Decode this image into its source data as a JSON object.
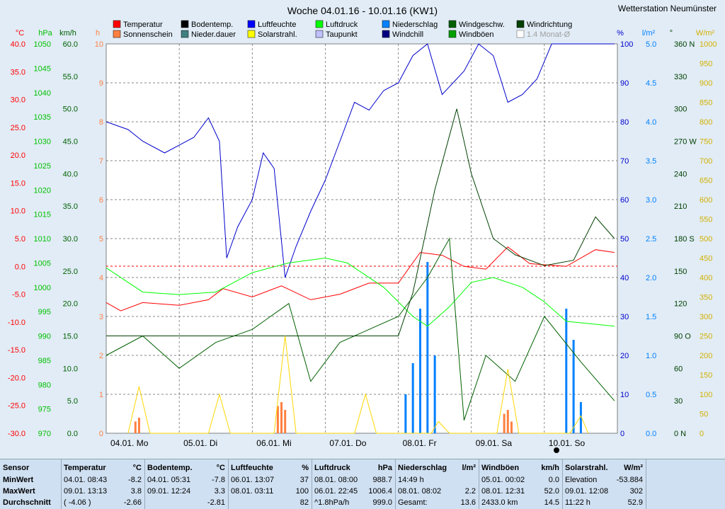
{
  "title": "Woche 04.01.16 - 10.01.16 (KW1)",
  "station": "Wetterstation Neumünster",
  "axes": {
    "left_units": [
      "°C",
      "hPa",
      "km/h",
      "h"
    ],
    "right_units": [
      "%",
      "l/m²",
      "°",
      "W/m²"
    ],
    "temp_ticks": [
      "40.0",
      "35.0",
      "30.0",
      "25.0",
      "20.0",
      "15.0",
      "10.0",
      "5.0",
      "0.0",
      "-5.0",
      "-10.0",
      "-15.0",
      "-20.0",
      "-25.0",
      "-30.0"
    ],
    "hpa_ticks": [
      "1050",
      "1045",
      "1040",
      "1035",
      "1030",
      "1025",
      "1020",
      "1015",
      "1010",
      "1005",
      "1000",
      "995",
      "990",
      "985",
      "980",
      "975",
      "970"
    ],
    "kmh_ticks": [
      "60.0",
      "55.0",
      "50.0",
      "45.0",
      "40.0",
      "35.0",
      "30.0",
      "25.0",
      "20.0",
      "15.0",
      "10.0",
      "5.0",
      "0.0"
    ],
    "h_ticks": [
      "10",
      "9",
      "8",
      "7",
      "6",
      "5",
      "4",
      "3",
      "2",
      "1",
      "0"
    ],
    "pct_ticks": [
      "100",
      "90",
      "80",
      "70",
      "60",
      "50",
      "40",
      "30",
      "20",
      "10",
      "0"
    ],
    "lm2_ticks": [
      "5.0",
      "4.5",
      "4.0",
      "3.5",
      "3.0",
      "2.5",
      "2.0",
      "1.5",
      "1.0",
      "0.5",
      "0.0"
    ],
    "deg_ticks": [
      "360 N",
      "330",
      "300",
      "270 W",
      "240",
      "210",
      "180 S",
      "150",
      "120",
      "90 O",
      "60",
      "30",
      "0 N"
    ],
    "wm2_ticks": [
      "1000",
      "950",
      "900",
      "850",
      "800",
      "750",
      "700",
      "650",
      "600",
      "550",
      "500",
      "450",
      "400",
      "350",
      "300",
      "250",
      "200",
      "150",
      "100",
      "50",
      "0"
    ],
    "day_labels": [
      "04.01. Mo",
      "05.01. Di",
      "06.01. Mi",
      "07.01. Do",
      "08.01. Fr",
      "09.01. Sa",
      "10.01. So"
    ]
  },
  "legend": [
    {
      "label": "Temperatur",
      "color": "#ff0000"
    },
    {
      "label": "Sonnenschein",
      "color": "#ff8040"
    },
    {
      "label": "Bodentemp.",
      "color": "#000000"
    },
    {
      "label": "Nieder.dauer",
      "color": "#408080"
    },
    {
      "label": "Luftfeuchte",
      "color": "#0000ff"
    },
    {
      "label": "Solarstrahl.",
      "color": "#ffff00"
    },
    {
      "label": "Luftdruck",
      "color": "#00ff00"
    },
    {
      "label": "Taupunkt",
      "color": "#c0c0ff"
    },
    {
      "label": "Niederschlag",
      "color": "#0080ff"
    },
    {
      "label": "Windchill",
      "color": "#000080"
    },
    {
      "label": "Windgeschw.",
      "color": "#006000"
    },
    {
      "label": "Windböen",
      "color": "#00a000"
    },
    {
      "label": "Windrichtung",
      "color": "#004000"
    },
    {
      "label": "1.4 Monat-Ø",
      "color": "#a0a0a0"
    }
  ],
  "chart_data": {
    "type": "line",
    "x_unit": "days since 04.01. 00:00",
    "x_range": [
      0,
      6.96
    ],
    "series": [
      {
        "name": "Luftfeuchte",
        "unit": "%",
        "points": [
          [
            0,
            80
          ],
          [
            0.3,
            78
          ],
          [
            0.5,
            75
          ],
          [
            0.8,
            72
          ],
          [
            1.2,
            76
          ],
          [
            1.4,
            81
          ],
          [
            1.55,
            75
          ],
          [
            1.65,
            45
          ],
          [
            1.8,
            53
          ],
          [
            2.0,
            60
          ],
          [
            2.15,
            72
          ],
          [
            2.3,
            68
          ],
          [
            2.45,
            40
          ],
          [
            2.6,
            48
          ],
          [
            2.8,
            57
          ],
          [
            3.0,
            65
          ],
          [
            3.2,
            75
          ],
          [
            3.4,
            85
          ],
          [
            3.6,
            83
          ],
          [
            3.8,
            88
          ],
          [
            4.0,
            90
          ],
          [
            4.2,
            97
          ],
          [
            4.4,
            100
          ],
          [
            4.6,
            87
          ],
          [
            4.75,
            90
          ],
          [
            4.9,
            93
          ],
          [
            5.1,
            100
          ],
          [
            5.3,
            97
          ],
          [
            5.5,
            85
          ],
          [
            5.7,
            87
          ],
          [
            5.9,
            91
          ],
          [
            6.1,
            100
          ],
          [
            6.96,
            100
          ]
        ]
      },
      {
        "name": "Temperatur",
        "unit": "°C",
        "points": [
          [
            0,
            -6.5
          ],
          [
            0.2,
            -8
          ],
          [
            0.5,
            -6.5
          ],
          [
            1,
            -7
          ],
          [
            1.4,
            -6
          ],
          [
            1.6,
            -4
          ],
          [
            2,
            -5.5
          ],
          [
            2.4,
            -3.5
          ],
          [
            2.8,
            -6
          ],
          [
            3.2,
            -5
          ],
          [
            3.6,
            -3
          ],
          [
            4.0,
            -3
          ],
          [
            4.3,
            2.5
          ],
          [
            4.6,
            2
          ],
          [
            4.9,
            0
          ],
          [
            5.2,
            -0.5
          ],
          [
            5.5,
            3.5
          ],
          [
            5.8,
            0.5
          ],
          [
            6.3,
            0
          ],
          [
            6.7,
            3
          ],
          [
            6.96,
            2.5
          ]
        ]
      },
      {
        "name": "Luftdruck",
        "unit": "hPa",
        "points": [
          [
            0,
            1004
          ],
          [
            0.5,
            999
          ],
          [
            1,
            998.5
          ],
          [
            1.5,
            999
          ],
          [
            2,
            1003
          ],
          [
            2.5,
            1005
          ],
          [
            3,
            1006
          ],
          [
            3.3,
            1005
          ],
          [
            3.8,
            1000
          ],
          [
            4.2,
            994
          ],
          [
            4.4,
            992
          ],
          [
            4.7,
            996
          ],
          [
            5.0,
            1001
          ],
          [
            5.3,
            1002
          ],
          [
            5.7,
            1000
          ],
          [
            6.0,
            997
          ],
          [
            6.3,
            993
          ],
          [
            6.96,
            992
          ]
        ]
      },
      {
        "name": "Windgeschw.",
        "unit": "km/h",
        "points": [
          [
            0,
            12
          ],
          [
            0.5,
            15
          ],
          [
            1,
            10
          ],
          [
            1.5,
            14
          ],
          [
            2,
            16
          ],
          [
            2.5,
            20
          ],
          [
            2.8,
            8
          ],
          [
            3.2,
            14
          ],
          [
            3.6,
            16
          ],
          [
            4.0,
            18
          ],
          [
            4.4,
            24
          ],
          [
            4.7,
            30
          ],
          [
            4.9,
            2
          ],
          [
            5.2,
            12
          ],
          [
            5.6,
            8
          ],
          [
            6.0,
            18
          ],
          [
            6.5,
            11
          ],
          [
            6.96,
            5
          ]
        ]
      },
      {
        "name": "Windrichtung",
        "unit": "°",
        "points": [
          [
            0,
            90
          ],
          [
            1,
            90
          ],
          [
            2,
            90
          ],
          [
            3,
            90
          ],
          [
            4,
            90
          ],
          [
            4.2,
            130
          ],
          [
            4.5,
            225
          ],
          [
            4.8,
            300
          ],
          [
            5.0,
            240
          ],
          [
            5.3,
            180
          ],
          [
            5.6,
            165
          ],
          [
            6.0,
            155
          ],
          [
            6.4,
            160
          ],
          [
            6.7,
            200
          ],
          [
            6.96,
            180
          ]
        ]
      },
      {
        "name": "Niederschlag",
        "unit": "l/m²",
        "bars": [
          [
            4.1,
            0.5
          ],
          [
            4.2,
            0.9
          ],
          [
            4.3,
            1.6
          ],
          [
            4.4,
            2.2
          ],
          [
            4.5,
            1.0
          ],
          [
            6.3,
            1.6
          ],
          [
            6.4,
            1.2
          ],
          [
            6.5,
            0.4
          ]
        ]
      },
      {
        "name": "Sonnenschein",
        "unit": "h",
        "bars": [
          [
            0.4,
            0.3
          ],
          [
            0.45,
            0.4
          ],
          [
            2.35,
            0.7
          ],
          [
            2.4,
            0.8
          ],
          [
            2.45,
            0.6
          ],
          [
            5.45,
            0.5
          ],
          [
            5.5,
            0.6
          ],
          [
            5.55,
            0.3
          ]
        ]
      },
      {
        "name": "Solarstrahl.",
        "unit": "W/m²",
        "points": [
          [
            0.3,
            0
          ],
          [
            0.45,
            120
          ],
          [
            0.6,
            0
          ],
          [
            1.4,
            0
          ],
          [
            1.55,
            100
          ],
          [
            1.7,
            0
          ],
          [
            2.3,
            0
          ],
          [
            2.45,
            250
          ],
          [
            2.6,
            0
          ],
          [
            3.4,
            0
          ],
          [
            3.55,
            100
          ],
          [
            3.7,
            0
          ],
          [
            4.45,
            0
          ],
          [
            4.55,
            30
          ],
          [
            4.7,
            0
          ],
          [
            5.35,
            0
          ],
          [
            5.5,
            165
          ],
          [
            5.65,
            0
          ],
          [
            6.35,
            0
          ],
          [
            6.5,
            45
          ],
          [
            6.6,
            0
          ]
        ]
      }
    ]
  },
  "stats": {
    "sensor": {
      "head": "Sensor",
      "min": "MinWert",
      "max": "MaxWert",
      "avg": "Durchschnitt"
    },
    "temp": {
      "head": "Temperatur",
      "unit": "°C",
      "min_date": "04.01. 08:43",
      "min_val": "-8.2",
      "max_date": "09.01. 13:13",
      "max_val": "3.8",
      "avg_date": "( -4.06 )",
      "avg_val": "-2.66"
    },
    "soil": {
      "head": "Bodentemp.",
      "unit": "°C",
      "min_date": "04.01. 05:31",
      "min_val": "-7.8",
      "max_date": "09.01. 12:24",
      "max_val": "3.3",
      "avg_date": "",
      "avg_val": "-2.81"
    },
    "hum": {
      "head": "Luftfeuchte",
      "unit": "%",
      "min_date": "06.01. 13:07",
      "min_val": "37",
      "max_date": "08.01. 03:11",
      "max_val": "100",
      "avg_date": "",
      "avg_val": "82"
    },
    "press": {
      "head": "Luftdruck",
      "unit": "hPa",
      "min_date": "08.01. 08:00",
      "min_val": "988.7",
      "max_date": "06.01. 22:45",
      "max_val": "1006.4",
      "avg_date": "^1.8hPa/h",
      "avg_val": "999.0"
    },
    "rain": {
      "head": "Niederschlag",
      "unit": "l/m²",
      "min_date": "14:49 h",
      "min_val": "",
      "max_date": "08.01. 08:02",
      "max_val": "2.2",
      "avg_date": "Gesamt:",
      "avg_val": "13.6"
    },
    "gust": {
      "head": "Windböen",
      "unit": "km/h",
      "min_date": "05.01. 00:02",
      "min_val": "0.0",
      "max_date": "08.01. 12:31",
      "max_val": "52.0",
      "avg_date": "2433.0 km",
      "avg_val": "14.5"
    },
    "solar": {
      "head": "Solarstrahl.",
      "unit": "W/m²",
      "min_date": "Elevation",
      "min_val": "-53.884",
      "max_date": "09.01. 12:08",
      "max_val": "302",
      "avg_date": "11:22 h",
      "avg_val": "52.9"
    }
  }
}
